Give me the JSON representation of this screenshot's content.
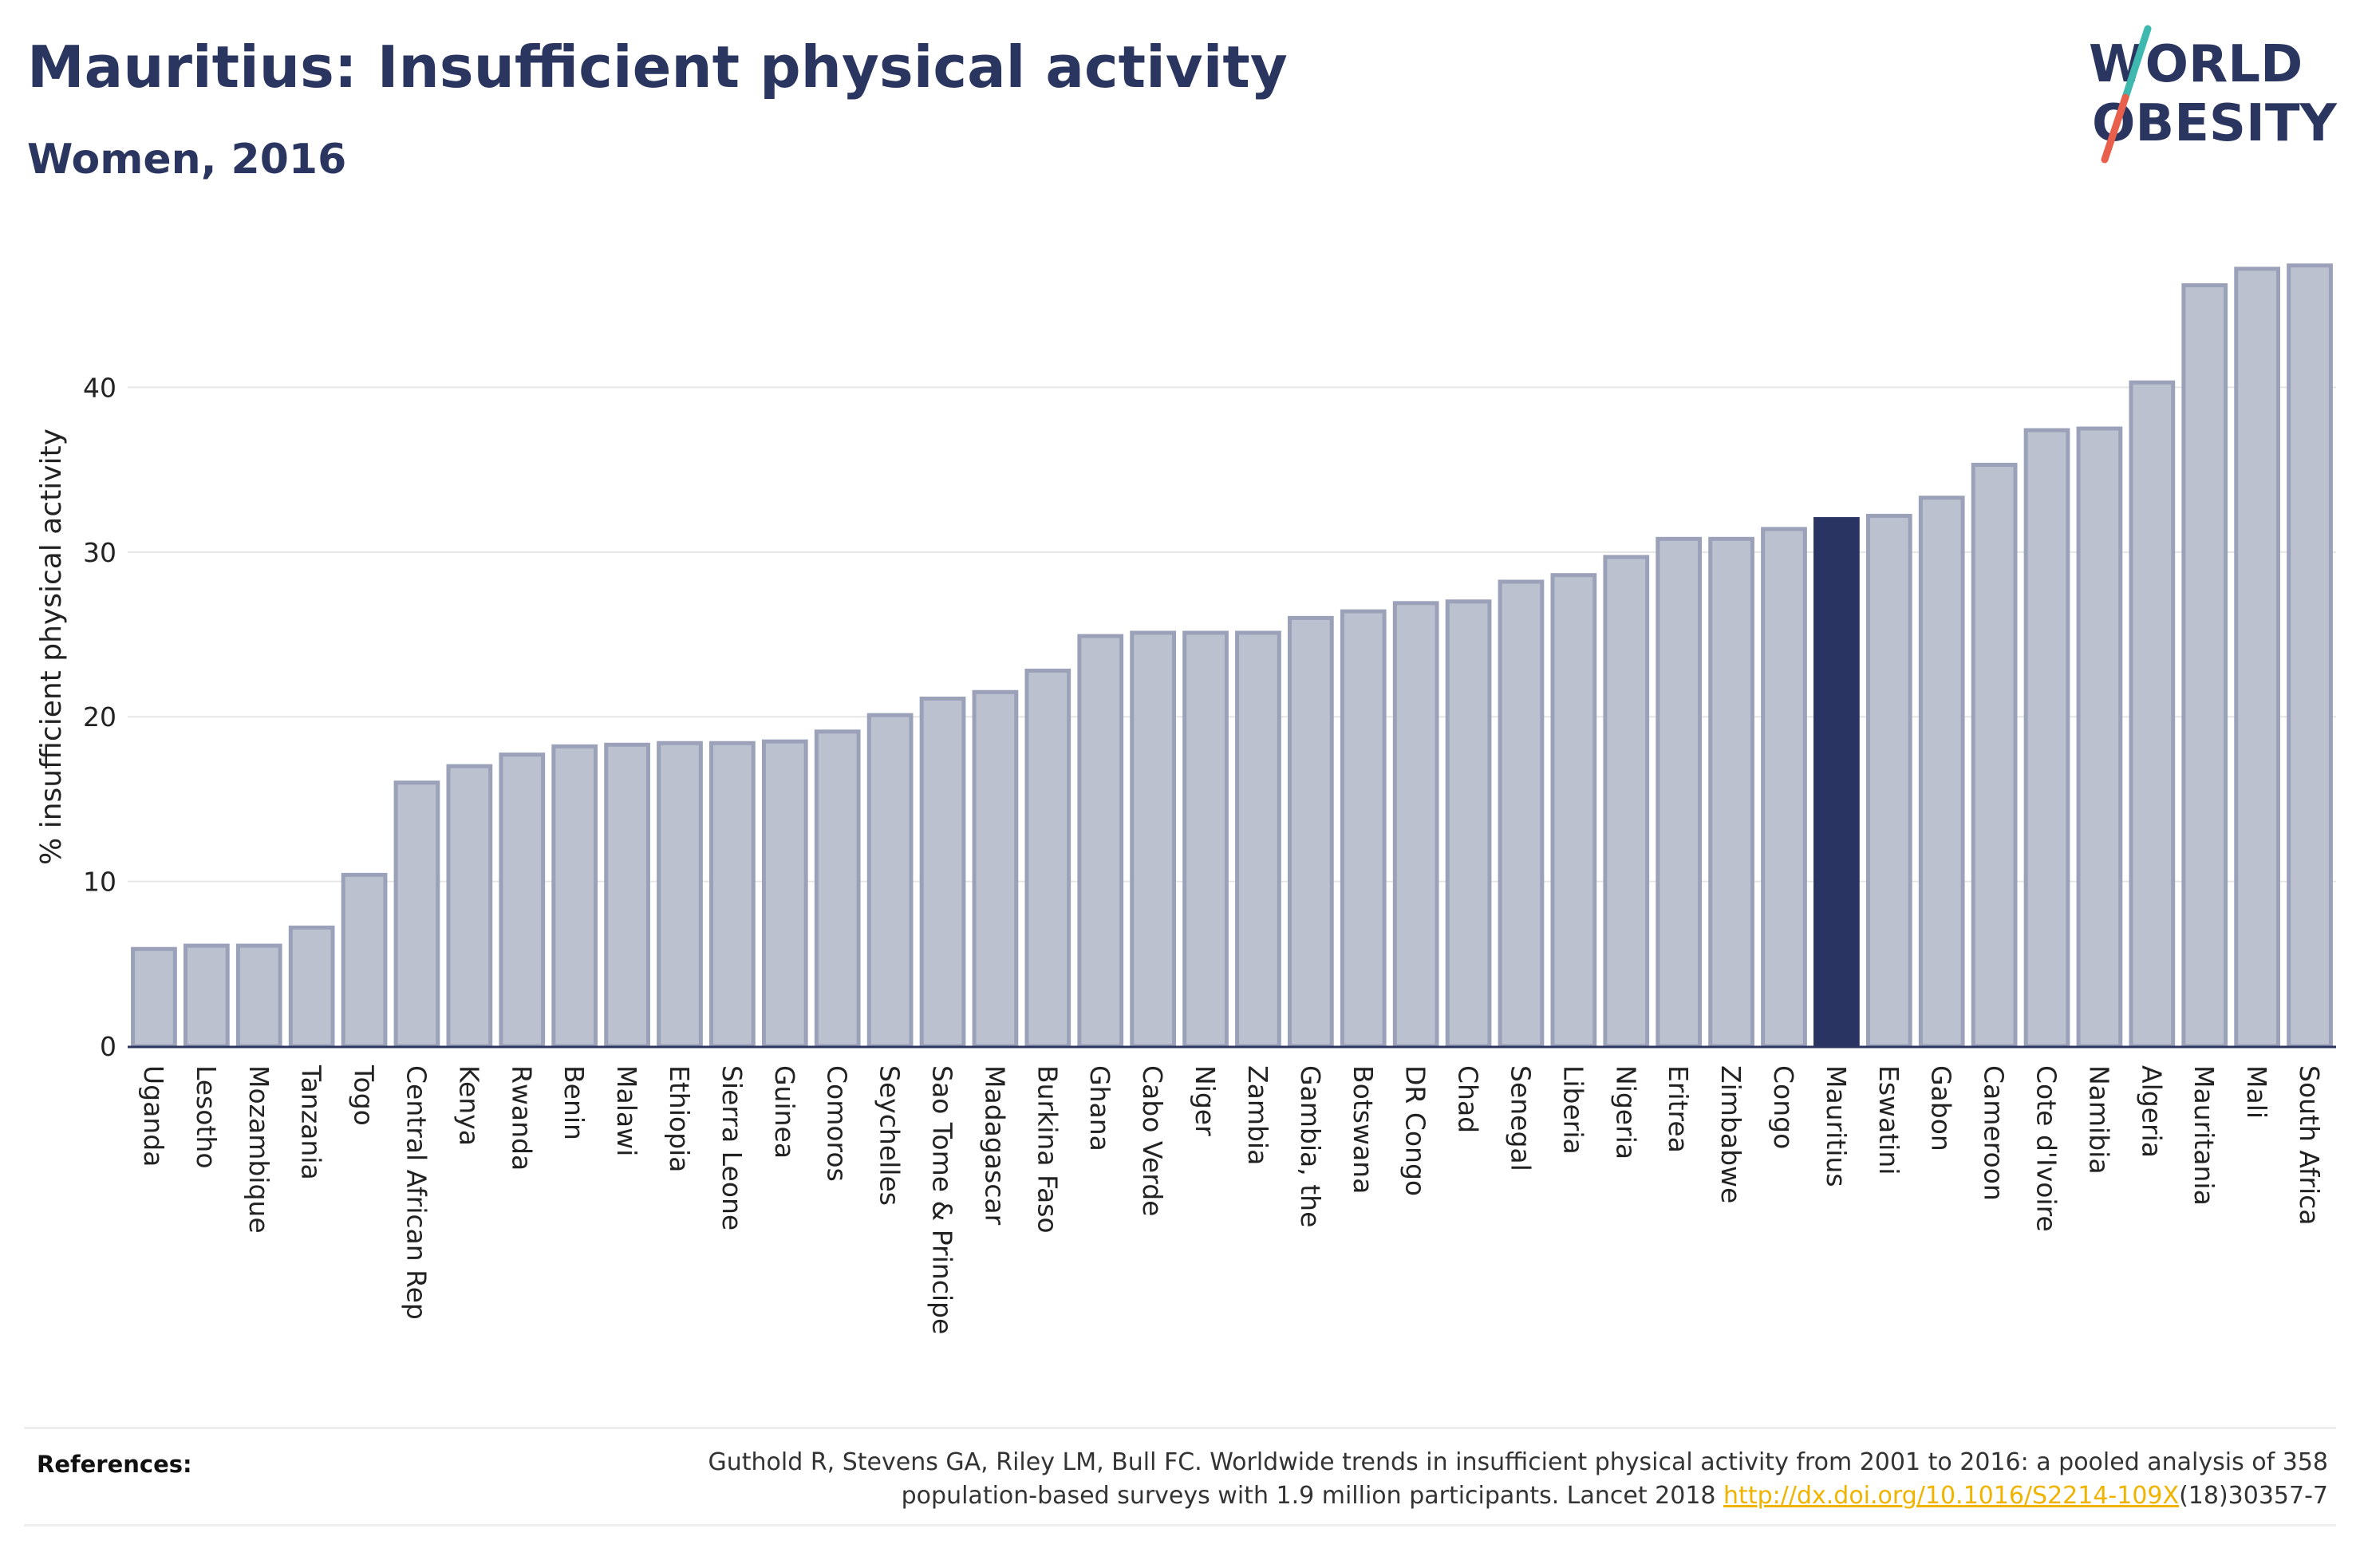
{
  "header": {
    "title": "Mauritius: Insufficient physical activity",
    "subtitle": "Women, 2016"
  },
  "logo": {
    "line1": "WORLD",
    "line2": "OBESITY",
    "text_color": "#2b3660",
    "slash_colors": [
      "#3fb8b0",
      "#e8604c"
    ]
  },
  "chart_data": {
    "type": "bar",
    "ylabel": "% insufficient physical activity",
    "xlabel": "",
    "ylim": [
      0,
      48.5
    ],
    "yticks": [
      0,
      10,
      20,
      30,
      40
    ],
    "grid": true,
    "highlight": "Mauritius",
    "colors": {
      "bar_fill": "#bcc1cf",
      "bar_stroke": "#9aa1b8",
      "highlight": "#293462",
      "grid": "#e6e6e6"
    },
    "categories": [
      "Uganda",
      "Lesotho",
      "Mozambique",
      "Tanzania",
      "Togo",
      "Central African Rep",
      "Kenya",
      "Rwanda",
      "Benin",
      "Malawi",
      "Ethiopia",
      "Sierra Leone",
      "Guinea",
      "Comoros",
      "Seychelles",
      "Sao Tome & Principe",
      "Madagascar",
      "Burkina Faso",
      "Ghana",
      "Cabo Verde",
      "Niger",
      "Zambia",
      "Gambia, the",
      "Botswana",
      "DR Congo",
      "Chad",
      "Senegal",
      "Liberia",
      "Nigeria",
      "Eritrea",
      "Zimbabwe",
      "Congo",
      "Mauritius",
      "Eswatini",
      "Gabon",
      "Cameroon",
      "Cote d'Ivoire",
      "Namibia",
      "Algeria",
      "Mauritania",
      "Mali",
      "South Africa"
    ],
    "values": [
      5.9,
      6.1,
      6.1,
      7.2,
      10.4,
      16.0,
      17.0,
      17.7,
      18.2,
      18.3,
      18.4,
      18.4,
      18.5,
      19.1,
      20.1,
      21.1,
      21.5,
      22.8,
      24.9,
      25.1,
      25.1,
      25.1,
      26.0,
      26.4,
      26.9,
      27.0,
      28.2,
      28.6,
      29.7,
      30.8,
      30.8,
      31.4,
      32.0,
      32.2,
      33.3,
      35.3,
      37.4,
      37.5,
      40.3,
      46.2,
      47.2,
      47.4
    ]
  },
  "references": {
    "label": "References:",
    "text_line1": "Guthold R, Stevens GA, Riley LM, Bull FC. Worldwide trends in insufficient physical activity from 2001 to 2016: a pooled analysis of 358",
    "text_line2_before": "population-based surveys with 1.9 million participants. Lancet 2018 ",
    "link": "http://dx.doi.org/10.1016/S2214-109X",
    "text_line2_after": "(18)30357-7"
  }
}
